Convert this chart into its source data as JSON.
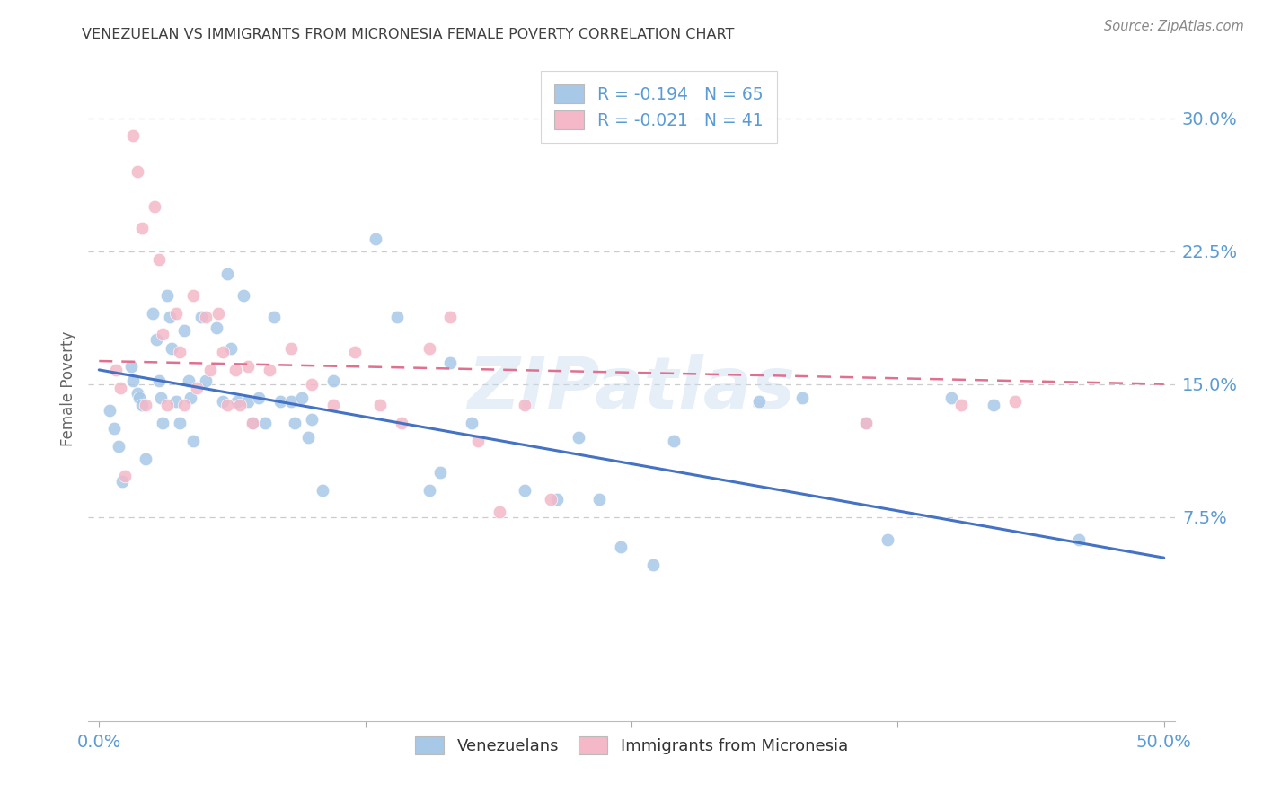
{
  "title": "VENEZUELAN VS IMMIGRANTS FROM MICRONESIA FEMALE POVERTY CORRELATION CHART",
  "source": "Source: ZipAtlas.com",
  "ylabel": "Female Poverty",
  "watermark": "ZIPatlas",
  "legend": [
    {
      "label": "R = -0.194   N = 65",
      "color": "#a8c8e8"
    },
    {
      "label": "R = -0.021   N = 41",
      "color": "#f4b8c8"
    }
  ],
  "legend_labels_bottom": [
    "Venezuelans",
    "Immigrants from Micronesia"
  ],
  "xlim": [
    -0.005,
    0.505
  ],
  "ylim": [
    -0.04,
    0.335
  ],
  "yticks": [
    0.075,
    0.15,
    0.225,
    0.3
  ],
  "ytick_labels": [
    "7.5%",
    "15.0%",
    "22.5%",
    "30.0%"
  ],
  "xticks": [
    0.0,
    0.125,
    0.25,
    0.375,
    0.5
  ],
  "xtick_labels": [
    "0.0%",
    "",
    "",
    "",
    "50.0%"
  ],
  "grid_color": "#cccccc",
  "background_color": "#ffffff",
  "blue_color": "#a8c8e8",
  "pink_color": "#f4b8c8",
  "title_color": "#404040",
  "axis_color": "#5b9bd5",
  "venezuelans_x": [
    0.005,
    0.007,
    0.009,
    0.011,
    0.015,
    0.016,
    0.018,
    0.019,
    0.02,
    0.022,
    0.025,
    0.027,
    0.028,
    0.029,
    0.03,
    0.032,
    0.033,
    0.034,
    0.036,
    0.038,
    0.04,
    0.042,
    0.043,
    0.044,
    0.048,
    0.05,
    0.055,
    0.058,
    0.06,
    0.062,
    0.065,
    0.068,
    0.07,
    0.072,
    0.075,
    0.078,
    0.082,
    0.085,
    0.09,
    0.092,
    0.095,
    0.098,
    0.1,
    0.105,
    0.11,
    0.13,
    0.14,
    0.155,
    0.16,
    0.165,
    0.175,
    0.2,
    0.215,
    0.225,
    0.235,
    0.245,
    0.26,
    0.27,
    0.31,
    0.33,
    0.36,
    0.37,
    0.4,
    0.42,
    0.46
  ],
  "venezuelans_y": [
    0.135,
    0.125,
    0.115,
    0.095,
    0.16,
    0.152,
    0.145,
    0.142,
    0.138,
    0.108,
    0.19,
    0.175,
    0.152,
    0.142,
    0.128,
    0.2,
    0.188,
    0.17,
    0.14,
    0.128,
    0.18,
    0.152,
    0.142,
    0.118,
    0.188,
    0.152,
    0.182,
    0.14,
    0.212,
    0.17,
    0.14,
    0.2,
    0.14,
    0.128,
    0.142,
    0.128,
    0.188,
    0.14,
    0.14,
    0.128,
    0.142,
    0.12,
    0.13,
    0.09,
    0.152,
    0.232,
    0.188,
    0.09,
    0.1,
    0.162,
    0.128,
    0.09,
    0.085,
    0.12,
    0.085,
    0.058,
    0.048,
    0.118,
    0.14,
    0.142,
    0.128,
    0.062,
    0.142,
    0.138,
    0.062
  ],
  "micronesia_x": [
    0.008,
    0.01,
    0.012,
    0.016,
    0.018,
    0.02,
    0.022,
    0.026,
    0.028,
    0.03,
    0.032,
    0.036,
    0.038,
    0.04,
    0.044,
    0.046,
    0.05,
    0.052,
    0.056,
    0.058,
    0.06,
    0.064,
    0.066,
    0.07,
    0.072,
    0.08,
    0.09,
    0.1,
    0.11,
    0.12,
    0.132,
    0.142,
    0.155,
    0.165,
    0.178,
    0.188,
    0.2,
    0.212,
    0.36,
    0.405,
    0.43
  ],
  "micronesia_y": [
    0.158,
    0.148,
    0.098,
    0.29,
    0.27,
    0.238,
    0.138,
    0.25,
    0.22,
    0.178,
    0.138,
    0.19,
    0.168,
    0.138,
    0.2,
    0.148,
    0.188,
    0.158,
    0.19,
    0.168,
    0.138,
    0.158,
    0.138,
    0.16,
    0.128,
    0.158,
    0.17,
    0.15,
    0.138,
    0.168,
    0.138,
    0.128,
    0.17,
    0.188,
    0.118,
    0.078,
    0.138,
    0.085,
    0.128,
    0.138,
    0.14
  ],
  "blue_line_x0": 0.0,
  "blue_line_x1": 0.5,
  "blue_line_y0": 0.158,
  "blue_line_y1": 0.052,
  "pink_line_x0": 0.0,
  "pink_line_x1": 0.5,
  "pink_line_y0": 0.163,
  "pink_line_y1": 0.15
}
